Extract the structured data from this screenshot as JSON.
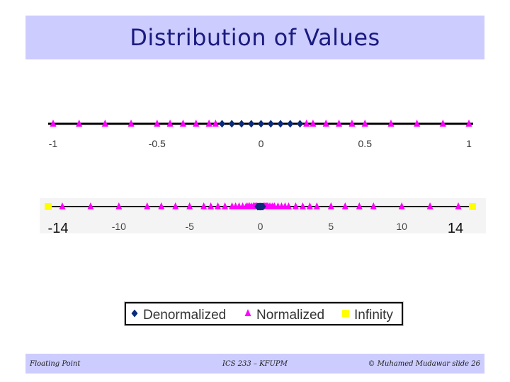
{
  "slide": {
    "title": "Distribution of Values",
    "footer_left": "Floating Point",
    "footer_center": "ICS 233 – KFUPM",
    "footer_right": "© Muhamed Mudawar  slide 26"
  },
  "colors": {
    "denormalized": "#0a2a7a",
    "normalized": "#ff00ff",
    "infinity": "#ffff00",
    "axis": "#000000"
  },
  "chart_data": [
    {
      "type": "scatter",
      "title": "",
      "xlim": [
        -1,
        1
      ],
      "tick_values": [
        -1,
        -0.5,
        0,
        0.5,
        1
      ],
      "tick_labels": [
        "-1",
        "-0.5",
        "0",
        "0.5",
        "1"
      ],
      "series": [
        {
          "name": "Denormalized",
          "marker": "diamond",
          "x": [
            -0.1875,
            -0.140625,
            -0.09375,
            -0.046875,
            0,
            0.046875,
            0.09375,
            0.140625,
            0.1875
          ]
        },
        {
          "name": "Normalized",
          "marker": "triangle",
          "x": [
            -1,
            -0.875,
            -0.75,
            -0.625,
            -0.5,
            -0.4375,
            -0.375,
            -0.3125,
            -0.25,
            -0.21875,
            0.21875,
            0.25,
            0.3125,
            0.375,
            0.4375,
            0.5,
            0.625,
            0.75,
            0.875,
            1
          ]
        }
      ]
    },
    {
      "type": "scatter",
      "title": "",
      "xlim": [
        -15,
        15
      ],
      "tick_values": [
        -10,
        -5,
        0,
        5,
        10
      ],
      "tick_labels": [
        "-10",
        "-5",
        "0",
        "5",
        "10"
      ],
      "end_labels": [
        "-14",
        "14"
      ],
      "series": [
        {
          "name": "Normalized",
          "marker": "triangle",
          "x": [
            -14,
            -12,
            -10,
            -8,
            -7,
            -6,
            -5,
            -4,
            -3.5,
            -3,
            -2.5,
            -2,
            -1.75,
            -1.5,
            -1.25,
            -1,
            -0.875,
            -0.75,
            -0.625,
            -0.5,
            -0.4375,
            -0.375,
            -0.3125,
            -0.25,
            0.25,
            0.3125,
            0.375,
            0.4375,
            0.5,
            0.625,
            0.75,
            0.875,
            1,
            1.25,
            1.5,
            1.75,
            2,
            2.5,
            3,
            3.5,
            4,
            5,
            6,
            7,
            8,
            10,
            12,
            14
          ]
        },
        {
          "name": "Denormalized",
          "marker": "diamond",
          "x": [
            -0.1875,
            -0.125,
            -0.0625,
            0,
            0.0625,
            0.125,
            0.1875
          ]
        },
        {
          "name": "Infinity",
          "marker": "square",
          "x": [
            -15,
            15
          ]
        }
      ]
    }
  ],
  "legend": {
    "items": [
      {
        "label": "Denormalized",
        "marker": "diamond"
      },
      {
        "label": "Normalized",
        "marker": "triangle"
      },
      {
        "label": "Infinity",
        "marker": "square"
      }
    ]
  }
}
